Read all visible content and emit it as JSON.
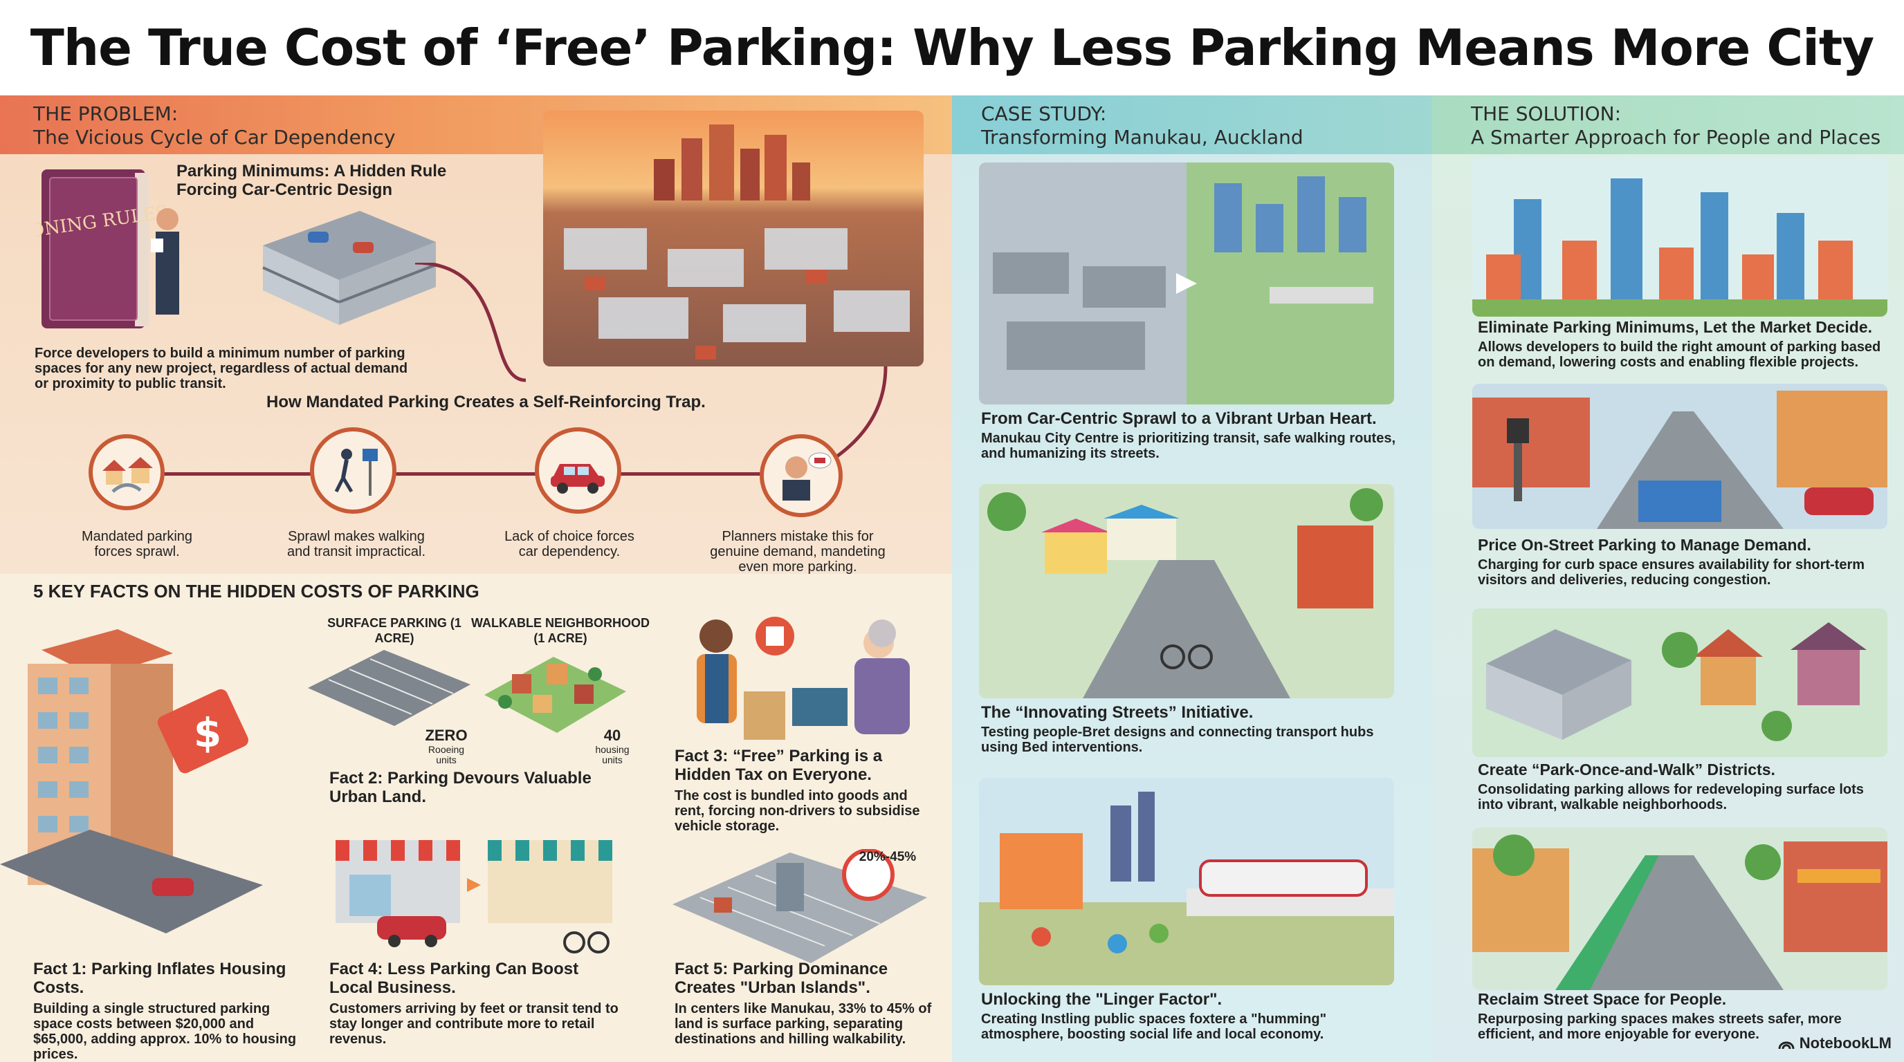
{
  "title": "The True Cost of ‘Free’ Parking: Why Less Parking Means More City",
  "problem": {
    "label": "THE PROBLEM:",
    "subtitle": "The Vicious Cycle of Car Dependency",
    "book_text": "ZONING RULES",
    "minimums_title": "Parking Minimums: A Hidden Rule Forcing Car-Centric Design",
    "minimums_body": "Force developers to build a minimum number of parking spaces for any new project, regardless of actual demand or proximity to public transit.",
    "trap_title": "How Mandated Parking Creates a Self-Reinforcing Trap.",
    "cycle": [
      {
        "caption": "Mandated parking forces sprawl."
      },
      {
        "caption": "Sprawl makes walking and transit impractical."
      },
      {
        "caption": "Lack of choice forces car dependency."
      },
      {
        "caption": "Planners mistake this for genuine demand, mandeting even more parking."
      }
    ]
  },
  "facts": {
    "heading": "5 KEY FACTS ON THE HIDDEN COSTS OF PARKING",
    "surface_label": "SURFACE PARKING (1 ACRE)",
    "walkable_label": "WALKABLE NEIGHBORHOOD (1 ACRE)",
    "zero_value": "ZERO",
    "zero_unit": "Rooeing units",
    "forty_value": "40",
    "forty_unit": "housing units",
    "pct_badge": "20%-45%",
    "price_tag": "$",
    "items": [
      {
        "title": "Fact 1: Parking Inflates Housing Costs.",
        "body": "Building a single structured parking space costs between $20,000 and $65,000, adding approx. 10% to housing prices."
      },
      {
        "title": "Fact 2: Parking Devours Valuable Urban Land.",
        "body": ""
      },
      {
        "title": "Fact 3: “Free” Parking is a Hidden Tax on Everyone.",
        "body": "The cost is bundled into goods and rent, forcing non-drivers to subsidise vehicle storage."
      },
      {
        "title": "Fact 4: Less Parking Can Boost Local Business.",
        "body": "Customers arriving by feet or transit tend to stay longer and contribute more to retail revenus."
      },
      {
        "title": "Fact 5: Parking Dominance Creates \"Urban Islands\".",
        "body": "In centers like Manukau, 33% to 45% of land is surface parking, separating destinations and hilling walkability."
      }
    ]
  },
  "case_study": {
    "label": "CASE STUDY:",
    "subtitle": "Transforming Manukau, Auckland",
    "items": [
      {
        "title": "From Car-Centric Sprawl to a Vibrant Urban Heart.",
        "body": "Manukau City Centre is prioritizing transit, safe walking routes, and humanizing its streets."
      },
      {
        "title": "The “Innovating Streets” Initiative.",
        "body": "Testing people-Bret designs and connecting transport hubs using Bed interventions."
      },
      {
        "title": "Unlocking the \"Linger Factor\".",
        "body": "Creating Instling public spaces foxtere a \"humming\" atmosphere, boosting social life and local economy."
      }
    ]
  },
  "solution": {
    "label": "THE SOLUTION:",
    "subtitle": "A Smarter Approach for People and Places",
    "items": [
      {
        "title": "Eliminate Parking Minimums, Let the Market Decide.",
        "body": "Allows developers to build the right amount of parking based on demand, lowering costs and enabling flexible projects."
      },
      {
        "title": "Price On-Street Parking to Manage Demand.",
        "body": "Charging for curb space ensures availability for short-term visitors and deliveries, reducing congestion."
      },
      {
        "title": "Create “Park-Once-and-Walk” Districts.",
        "body": "Consolidating parking allows for redeveloping surface lots into vibrant, walkable neighborhoods."
      },
      {
        "title": "Reclaim Street Space for People.",
        "body": "Repurposing parking spaces makes streets safer, more efficient, and more enjoyable for everyone."
      }
    ]
  },
  "brand": "NotebookLM",
  "colors": {
    "problem_band": "#e87454",
    "case_band": "#88cfd6",
    "solution_band": "#a9dcc0",
    "accent": "#c85a35"
  }
}
